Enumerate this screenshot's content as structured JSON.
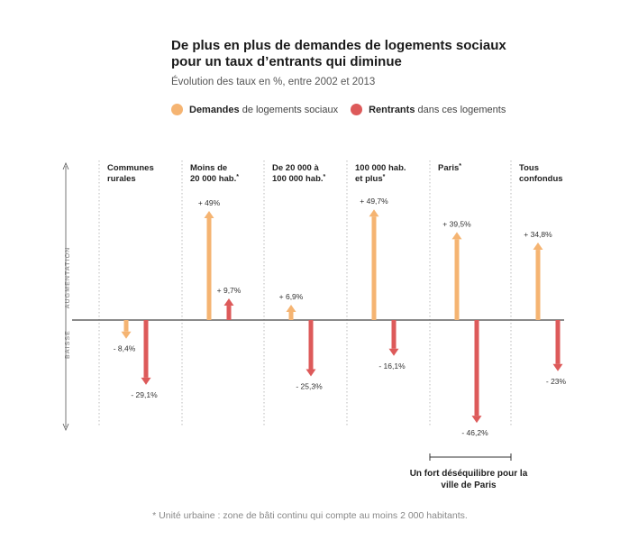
{
  "title_line1": "De plus en plus de demandes de logements sociaux",
  "title_line2": "pour un taux d’entrants qui diminue",
  "subtitle": "Évolution des taux en %, entre 2002 et 2013",
  "legend": {
    "demandes_bold": "Demandes",
    "demandes_rest": " de logements sociaux",
    "rentrants_bold": "Rentrants",
    "rentrants_rest": " dans ces logements"
  },
  "axis": {
    "up_label": "AUGMENTATION",
    "down_label": "BAISSE"
  },
  "annotation": {
    "line1": "Un fort déséquilibre pour la",
    "line2": "ville de Paris"
  },
  "footnote": "* Unité urbaine : zone de bâti continu qui compte au moins 2 000 habitants.",
  "colors": {
    "demandes": "#f5b472",
    "rentrants": "#dd5a5a",
    "axis": "#555555",
    "divider": "#bbbbbb"
  },
  "chart_data": {
    "type": "bar",
    "title": "De plus en plus de demandes de logements sociaux pour un taux d’entrants qui diminue",
    "subtitle": "Évolution des taux en %, entre 2002 et 2013",
    "unit": "%",
    "categories": [
      {
        "line1": "Communes",
        "line2": "rurales",
        "star": false
      },
      {
        "line1": "Moins de",
        "line2": "20 000 hab.",
        "star": true
      },
      {
        "line1": "De 20 000 à",
        "line2": "100 000 hab.",
        "star": true
      },
      {
        "line1": "100 000 hab.",
        "line2": "et plus",
        "star": true
      },
      {
        "line1": "Paris",
        "line2": "",
        "star": true
      },
      {
        "line1": "Tous",
        "line2": "confondus",
        "star": false
      }
    ],
    "series": [
      {
        "name": "Demandes de logements sociaux",
        "values": [
          -8.4,
          49,
          6.9,
          49.7,
          39.5,
          34.8
        ],
        "labels": [
          "- 8,4%",
          "+ 49%",
          "+ 6,9%",
          "+ 49,7%",
          "+ 39,5%",
          "+ 34,8%"
        ]
      },
      {
        "name": "Rentrants dans ces logements",
        "values": [
          -29.1,
          9.7,
          -25.3,
          -16.1,
          -46.2,
          -23
        ],
        "labels": [
          "- 29,1%",
          "+ 9,7%",
          "- 25,3%",
          "- 16,1%",
          "- 46,2%",
          "- 23%"
        ]
      }
    ],
    "star_char": "*"
  }
}
